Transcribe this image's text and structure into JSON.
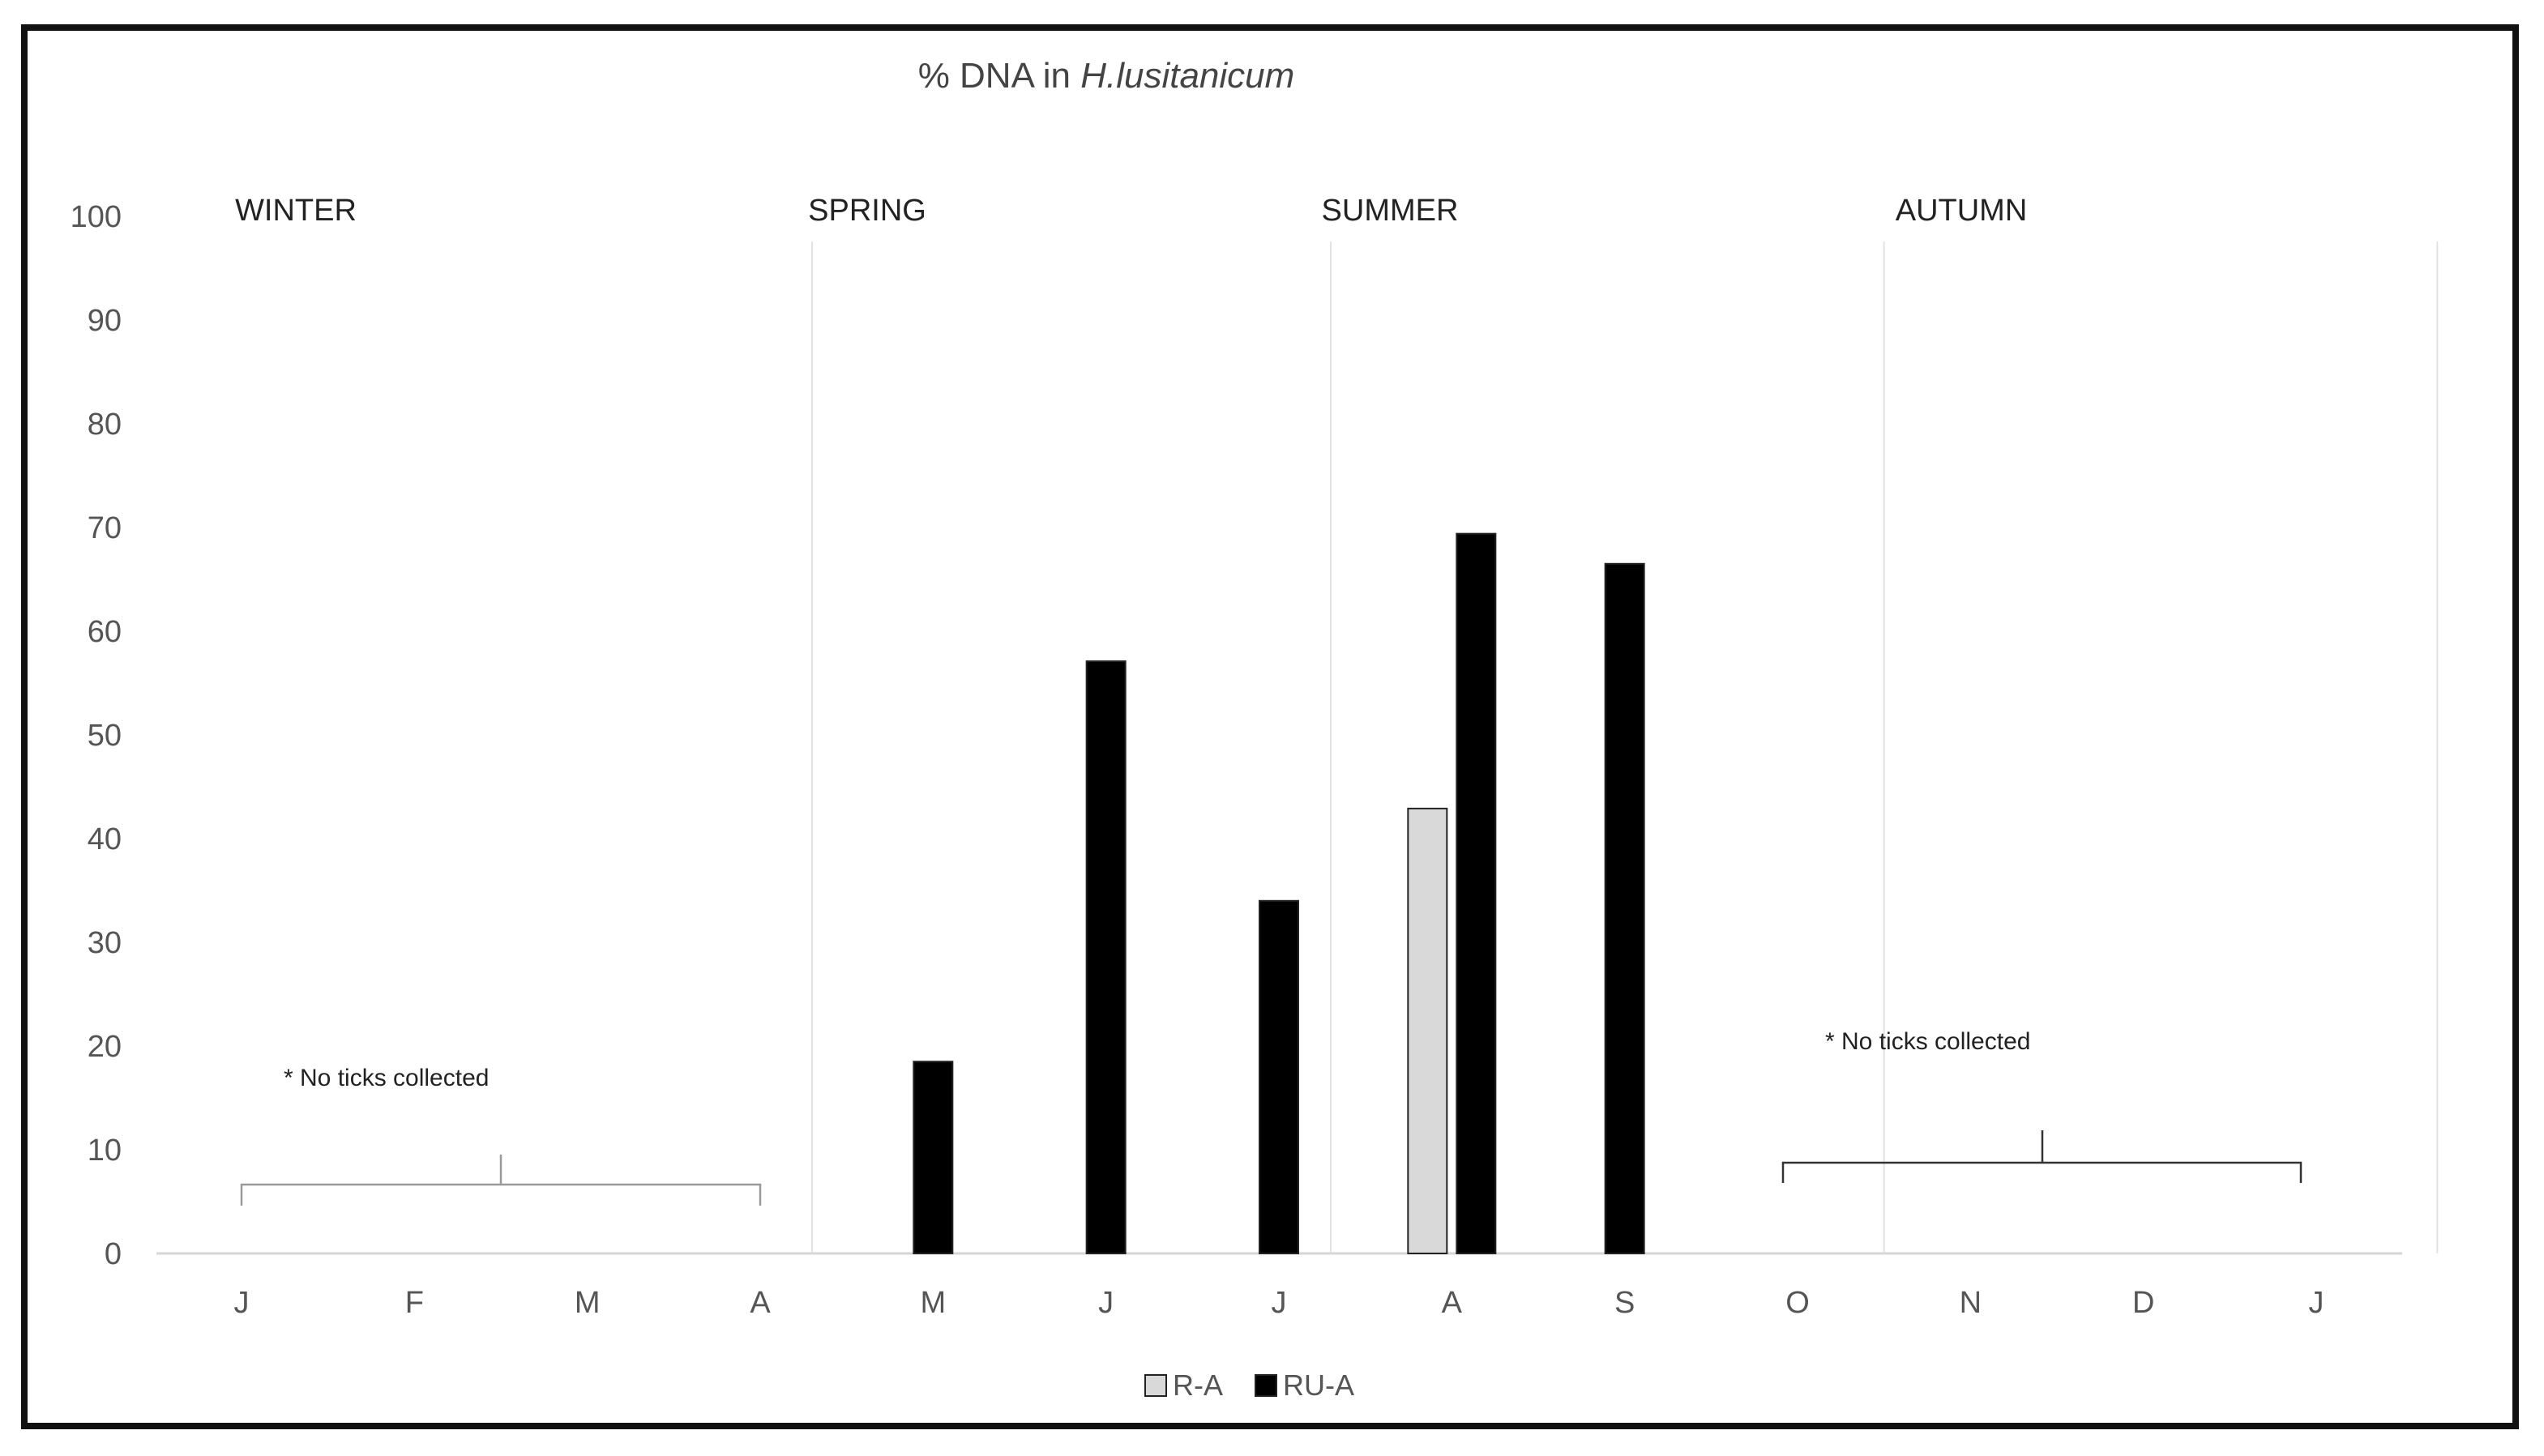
{
  "chart_data": {
    "type": "bar",
    "title_prefix": "% DNA in ",
    "title_species": "H.lusitanicum",
    "categories": [
      "J",
      "F",
      "M",
      "A",
      "M",
      "J",
      "J",
      "A",
      "S",
      "O",
      "N",
      "D",
      "J"
    ],
    "series": [
      {
        "name": "R-A",
        "color": "#d9d9d9",
        "values": [
          null,
          null,
          null,
          null,
          null,
          null,
          null,
          42.9,
          null,
          null,
          null,
          null,
          null
        ]
      },
      {
        "name": "RU-A",
        "color": "#000000",
        "values": [
          null,
          null,
          null,
          null,
          18.5,
          57.1,
          34.0,
          69.4,
          66.5,
          null,
          null,
          null,
          null
        ]
      }
    ],
    "ylim": [
      0,
      100
    ],
    "yticks": [
      "0",
      "10",
      "20",
      "30",
      "40",
      "50",
      "60",
      "70",
      "80",
      "90",
      "100"
    ],
    "seasons": [
      "WINTER",
      "SPRING",
      "SUMMER",
      "AUTUMN"
    ],
    "annotations": [
      "* No ticks collected",
      "* No ticks collected"
    ],
    "legend_position": "bottom-center",
    "grid": false
  }
}
